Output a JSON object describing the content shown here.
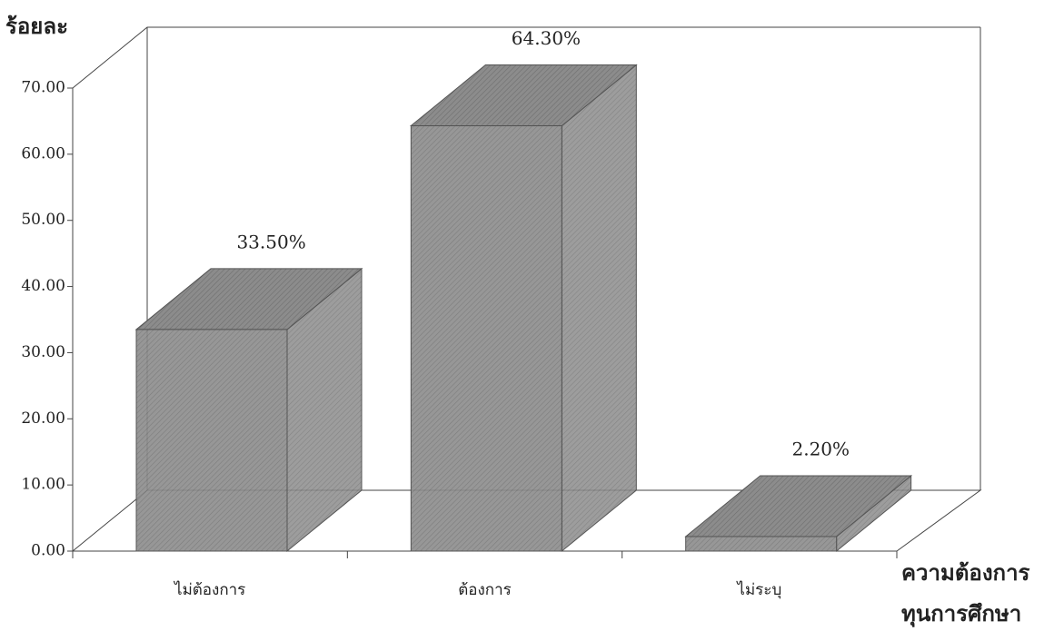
{
  "chart_data": {
    "type": "bar3d",
    "y_label": "ร้อยละ",
    "x_label": [
      "ความต้องการ",
      "ทุนการศึกษา"
    ],
    "categories": [
      "ไม่ต้องการ",
      "ต้องการ",
      "ไม่ระบุ"
    ],
    "values": [
      33.5,
      64.3,
      2.2
    ],
    "value_labels": [
      "33.50%",
      "64.30%",
      "2.20%"
    ],
    "color": "#8c8c8c",
    "ylim": [
      0,
      70
    ],
    "yticks": [
      {
        "value": 0,
        "label": "0.00"
      },
      {
        "value": 10,
        "label": "10.00"
      },
      {
        "value": 20,
        "label": "20.00"
      },
      {
        "value": 30,
        "label": "30.00"
      },
      {
        "value": 40,
        "label": "40.00"
      },
      {
        "value": 50,
        "label": "50.00"
      },
      {
        "value": 60,
        "label": "60.00"
      },
      {
        "value": 70,
        "label": "70.00"
      }
    ]
  }
}
